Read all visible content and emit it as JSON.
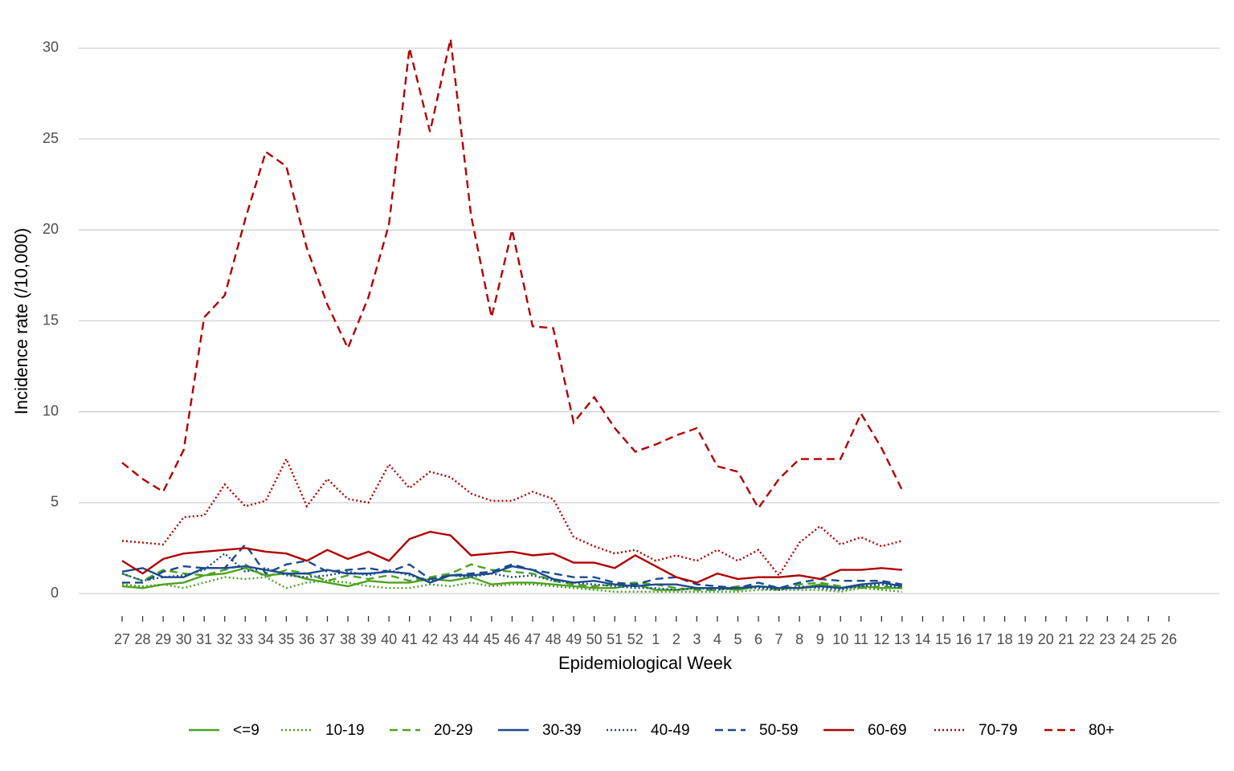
{
  "chart_data": {
    "type": "line",
    "x_label": "Epidemiological Week",
    "y_label": "Incidence rate (/10,000)",
    "categories": [
      "27",
      "28",
      "29",
      "30",
      "31",
      "32",
      "33",
      "34",
      "35",
      "36",
      "37",
      "38",
      "39",
      "40",
      "41",
      "42",
      "43",
      "44",
      "45",
      "46",
      "47",
      "48",
      "49",
      "50",
      "51",
      "52",
      "1",
      "2",
      "3",
      "4",
      "5",
      "6",
      "7",
      "8",
      "9",
      "10",
      "11",
      "12",
      "13",
      "14",
      "15",
      "16",
      "17",
      "18",
      "19",
      "20",
      "21",
      "22",
      "23",
      "24",
      "25",
      "26"
    ],
    "ylim": [
      -0.6,
      30.6
    ],
    "yticks": [
      0,
      5,
      10,
      15,
      20,
      25,
      30
    ],
    "grid": true,
    "legend": "bottom",
    "series": [
      {
        "name": "<=9",
        "color": "#4ca31f",
        "dash": "solid",
        "values": [
          0.4,
          0.3,
          0.5,
          0.6,
          1.0,
          1.1,
          1.4,
          1.0,
          1.1,
          0.8,
          0.6,
          0.4,
          0.7,
          0.6,
          0.6,
          0.8,
          0.7,
          0.9,
          0.5,
          0.6,
          0.6,
          0.5,
          0.4,
          0.3,
          0.3,
          0.5,
          0.2,
          0.2,
          0.3,
          0.3,
          0.2,
          0.4,
          0.3,
          0.3,
          0.5,
          0.3,
          0.4,
          0.3,
          0.3,
          null,
          null,
          null,
          null,
          null,
          null,
          null,
          null,
          null,
          null,
          null,
          null,
          null
        ]
      },
      {
        "name": "10-19",
        "color": "#4ca31f",
        "dash": "dotted",
        "values": [
          0.5,
          0.4,
          0.5,
          0.3,
          0.6,
          0.9,
          0.8,
          0.9,
          0.3,
          0.6,
          0.7,
          0.6,
          0.4,
          0.3,
          0.3,
          0.5,
          0.4,
          0.6,
          0.4,
          0.5,
          0.5,
          0.4,
          0.3,
          0.2,
          0.1,
          0.1,
          0.1,
          0.1,
          0.1,
          0.1,
          0.1,
          0.2,
          0.2,
          0.2,
          0.2,
          0.1,
          0.3,
          0.2,
          0.1,
          null,
          null,
          null,
          null,
          null,
          null,
          null,
          null,
          null,
          null,
          null,
          null,
          null
        ]
      },
      {
        "name": "20-29",
        "color": "#4ca31f",
        "dash": "dashed",
        "values": [
          1.1,
          0.7,
          1.3,
          1.1,
          1.0,
          1.3,
          1.6,
          0.9,
          1.3,
          1.1,
          0.7,
          1.0,
          0.8,
          1.0,
          0.7,
          0.9,
          1.1,
          1.6,
          1.3,
          1.2,
          1.1,
          0.7,
          0.5,
          0.4,
          0.5,
          0.6,
          0.5,
          0.3,
          0.2,
          0.2,
          0.4,
          0.4,
          0.2,
          0.5,
          0.6,
          0.4,
          0.3,
          0.4,
          0.3,
          null,
          null,
          null,
          null,
          null,
          null,
          null,
          null,
          null,
          null,
          null,
          null,
          null
        ]
      },
      {
        "name": "30-39",
        "color": "#1b4a8f",
        "dash": "solid",
        "values": [
          1.2,
          1.4,
          0.9,
          0.9,
          1.4,
          1.4,
          1.5,
          1.3,
          1.1,
          1.1,
          1.3,
          1.1,
          1.1,
          1.2,
          1.1,
          0.6,
          1.0,
          1.0,
          1.1,
          1.5,
          1.3,
          0.8,
          0.6,
          0.7,
          0.5,
          0.4,
          0.5,
          0.5,
          0.3,
          0.3,
          0.3,
          0.4,
          0.3,
          0.3,
          0.4,
          0.3,
          0.5,
          0.6,
          0.4,
          null,
          null,
          null,
          null,
          null,
          null,
          null,
          null,
          null,
          null,
          null,
          null,
          null
        ]
      },
      {
        "name": "40-49",
        "color": "#1b4a8f",
        "dash": "dotted",
        "values": [
          1.1,
          0.7,
          0.9,
          1.0,
          1.3,
          2.2,
          1.2,
          1.4,
          1.0,
          0.9,
          1.0,
          1.2,
          1.0,
          1.3,
          1.0,
          0.7,
          1.0,
          0.9,
          1.1,
          0.9,
          1.0,
          0.7,
          0.6,
          0.5,
          0.4,
          0.3,
          0.3,
          0.2,
          0.3,
          0.2,
          0.3,
          0.3,
          0.2,
          0.4,
          0.3,
          0.2,
          0.4,
          0.5,
          0.3,
          null,
          null,
          null,
          null,
          null,
          null,
          null,
          null,
          null,
          null,
          null,
          null,
          null
        ]
      },
      {
        "name": "50-59",
        "color": "#1b4a8f",
        "dash": "dashed",
        "values": [
          0.6,
          0.6,
          1.2,
          1.5,
          1.4,
          1.4,
          2.7,
          1.1,
          1.6,
          1.8,
          1.2,
          1.3,
          1.4,
          1.2,
          1.6,
          0.8,
          1.0,
          1.1,
          1.2,
          1.6,
          1.3,
          1.1,
          0.9,
          0.9,
          0.6,
          0.5,
          0.8,
          0.9,
          0.5,
          0.4,
          0.3,
          0.6,
          0.3,
          0.6,
          0.8,
          0.7,
          0.7,
          0.7,
          0.5,
          null,
          null,
          null,
          null,
          null,
          null,
          null,
          null,
          null,
          null,
          null,
          null,
          null
        ]
      },
      {
        "name": "60-69",
        "color": "#b00000",
        "dash": "solid",
        "values": [
          1.8,
          1.1,
          1.9,
          2.2,
          2.3,
          2.4,
          2.5,
          2.3,
          2.2,
          1.8,
          2.4,
          1.9,
          2.3,
          1.8,
          3.0,
          3.4,
          3.2,
          2.1,
          2.2,
          2.3,
          2.1,
          2.2,
          1.7,
          1.7,
          1.4,
          2.1,
          1.5,
          0.9,
          0.6,
          1.1,
          0.8,
          0.9,
          0.9,
          1.0,
          0.8,
          1.3,
          1.3,
          1.4,
          1.3,
          null,
          null,
          null,
          null,
          null,
          null,
          null,
          null,
          null,
          null,
          null,
          null,
          null
        ]
      },
      {
        "name": "70-79",
        "color": "#b00000",
        "dash": "dotted",
        "values": [
          2.9,
          2.8,
          2.7,
          4.2,
          4.3,
          6.0,
          4.8,
          5.1,
          7.4,
          4.8,
          6.3,
          5.2,
          5.0,
          7.1,
          5.8,
          6.7,
          6.4,
          5.5,
          5.1,
          5.1,
          5.6,
          5.2,
          3.1,
          2.6,
          2.2,
          2.4,
          1.8,
          2.1,
          1.8,
          2.4,
          1.8,
          2.4,
          1.0,
          2.8,
          3.7,
          2.7,
          3.1,
          2.6,
          2.9,
          null,
          null,
          null,
          null,
          null,
          null,
          null,
          null,
          null,
          null,
          null,
          null,
          null
        ]
      },
      {
        "name": "80+",
        "color": "#b00000",
        "dash": "dashed",
        "values": [
          7.2,
          6.3,
          5.6,
          7.9,
          15.2,
          16.4,
          20.6,
          24.3,
          23.5,
          19.0,
          15.9,
          13.5,
          16.3,
          20.3,
          30.0,
          25.4,
          30.5,
          20.8,
          15.2,
          20.0,
          14.7,
          14.6,
          9.4,
          10.8,
          9.1,
          7.8,
          8.2,
          8.7,
          9.1,
          7.0,
          6.7,
          4.7,
          6.3,
          7.4,
          7.4,
          7.4,
          9.9,
          8.0,
          5.7,
          null,
          null,
          null,
          null,
          null,
          null,
          null,
          null,
          null,
          null,
          null,
          null,
          null
        ]
      }
    ]
  }
}
